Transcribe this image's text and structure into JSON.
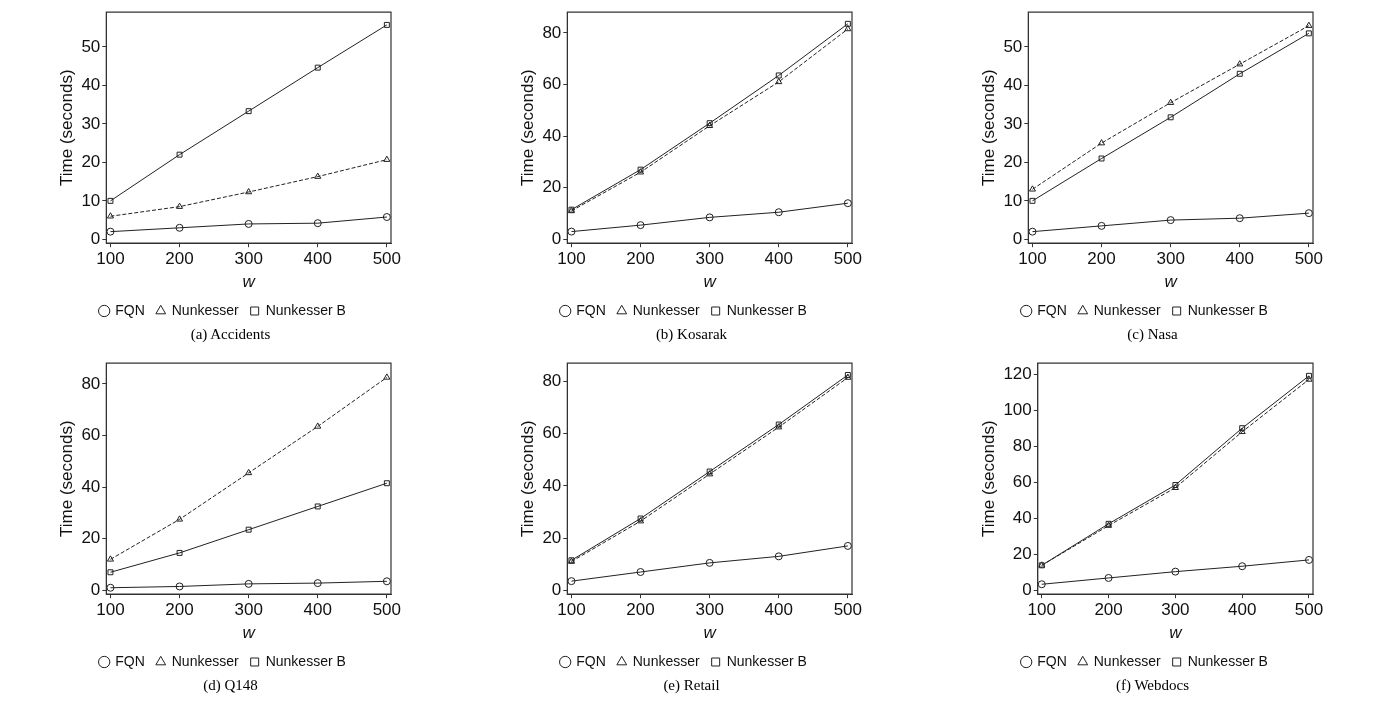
{
  "chart_data": [
    {
      "type": "line",
      "title": "(a) Accidents",
      "xlabel": "w",
      "ylabel": "Time (seconds)",
      "x": [
        100,
        200,
        300,
        400,
        500
      ],
      "xlim": [
        94,
        506
      ],
      "xticks": [
        100,
        200,
        300,
        400,
        500
      ],
      "ylim": [
        -1,
        59
      ],
      "yticks": [
        0,
        10,
        20,
        30,
        40,
        50
      ],
      "grid": false,
      "legend": "bottom",
      "series": [
        {
          "name": "FQN",
          "color": "#222222",
          "marker": "circle",
          "line_style": "solid",
          "values": [
            2,
            3,
            4,
            4.2,
            5.8
          ]
        },
        {
          "name": "Nunkesser",
          "color": "#222222",
          "marker": "triangle",
          "line_style": "dashed",
          "values": [
            6,
            8.5,
            12.3,
            16.3,
            20.7
          ]
        },
        {
          "name": "Nunkesser B",
          "color": "#222222",
          "marker": "square",
          "line_style": "solid",
          "values": [
            10,
            22,
            33.3,
            44.6,
            55.7
          ]
        }
      ]
    },
    {
      "type": "line",
      "title": "(b) Kosarak",
      "xlabel": "w",
      "ylabel": "Time (seconds)",
      "x": [
        100,
        200,
        300,
        400,
        500
      ],
      "xlim": [
        94,
        506
      ],
      "xticks": [
        100,
        200,
        300,
        400,
        500
      ],
      "ylim": [
        -1.5,
        88
      ],
      "yticks": [
        0,
        20,
        40,
        60,
        80
      ],
      "grid": false,
      "legend": "bottom",
      "series": [
        {
          "name": "FQN",
          "color": "#222222",
          "marker": "circle",
          "line_style": "solid",
          "values": [
            3,
            5.5,
            8.5,
            10.5,
            14
          ]
        },
        {
          "name": "Nunkesser",
          "color": "#222222",
          "marker": "triangle",
          "line_style": "dashed",
          "values": [
            11,
            26,
            44,
            61,
            81.5
          ]
        },
        {
          "name": "Nunkesser B",
          "color": "#222222",
          "marker": "square",
          "line_style": "solid",
          "values": [
            11.5,
            27,
            45,
            63.5,
            83.5
          ]
        }
      ]
    },
    {
      "type": "line",
      "title": "(c) Nasa",
      "xlabel": "w",
      "ylabel": "Time (seconds)",
      "x": [
        100,
        200,
        300,
        400,
        500
      ],
      "xlim": [
        94,
        506
      ],
      "xticks": [
        100,
        200,
        300,
        400,
        500
      ],
      "ylim": [
        -1,
        59
      ],
      "yticks": [
        0,
        10,
        20,
        30,
        40,
        50
      ],
      "grid": false,
      "legend": "bottom",
      "series": [
        {
          "name": "FQN",
          "color": "#222222",
          "marker": "circle",
          "line_style": "solid",
          "values": [
            2,
            3.5,
            5,
            5.5,
            6.8
          ]
        },
        {
          "name": "Nunkesser",
          "color": "#222222",
          "marker": "triangle",
          "line_style": "dashed",
          "values": [
            13,
            25,
            35.5,
            45.5,
            55.5
          ]
        },
        {
          "name": "Nunkesser B",
          "color": "#222222",
          "marker": "square",
          "line_style": "solid",
          "values": [
            10,
            21,
            31.7,
            43,
            53.5
          ]
        }
      ]
    },
    {
      "type": "line",
      "title": "(d) Q148",
      "xlabel": "w",
      "ylabel": "Time (seconds)",
      "x": [
        100,
        200,
        300,
        400,
        500
      ],
      "xlim": [
        94,
        506
      ],
      "xticks": [
        100,
        200,
        300,
        400,
        500
      ],
      "ylim": [
        -1.5,
        88
      ],
      "yticks": [
        0,
        20,
        40,
        60,
        80
      ],
      "grid": false,
      "legend": "bottom",
      "series": [
        {
          "name": "FQN",
          "color": "#222222",
          "marker": "circle",
          "line_style": "solid",
          "values": [
            1,
            1.5,
            2.5,
            2.8,
            3.5
          ]
        },
        {
          "name": "Nunkesser",
          "color": "#222222",
          "marker": "triangle",
          "line_style": "dashed",
          "values": [
            12,
            27.5,
            45.5,
            63.5,
            82.5
          ]
        },
        {
          "name": "Nunkesser B",
          "color": "#222222",
          "marker": "square",
          "line_style": "solid",
          "values": [
            7,
            14.5,
            23.5,
            32.5,
            41.5
          ]
        }
      ]
    },
    {
      "type": "line",
      "title": "(e) Retail",
      "xlabel": "w",
      "ylabel": "Time (seconds)",
      "x": [
        100,
        200,
        300,
        400,
        500
      ],
      "xlim": [
        94,
        506
      ],
      "xticks": [
        100,
        200,
        300,
        400,
        500
      ],
      "ylim": [
        -1.5,
        87
      ],
      "yticks": [
        0,
        20,
        40,
        60,
        80
      ],
      "grid": false,
      "legend": "bottom",
      "series": [
        {
          "name": "FQN",
          "color": "#222222",
          "marker": "circle",
          "line_style": "solid",
          "values": [
            3.5,
            7,
            10.5,
            13,
            17
          ]
        },
        {
          "name": "Nunkesser",
          "color": "#222222",
          "marker": "triangle",
          "line_style": "dashed",
          "values": [
            11,
            26.5,
            44.5,
            62.5,
            81.5
          ]
        },
        {
          "name": "Nunkesser B",
          "color": "#222222",
          "marker": "square",
          "line_style": "solid",
          "values": [
            11.5,
            27.5,
            45.5,
            63.5,
            82.5
          ]
        }
      ]
    },
    {
      "type": "line",
      "title": "(f) Webdocs",
      "xlabel": "w",
      "ylabel": "Time (seconds)",
      "x": [
        100,
        200,
        300,
        400,
        500
      ],
      "xlim": [
        94,
        506
      ],
      "xticks": [
        100,
        200,
        300,
        400,
        500
      ],
      "ylim": [
        -2,
        126
      ],
      "yticks": [
        0,
        20,
        40,
        60,
        80,
        100,
        120
      ],
      "grid": false,
      "legend": "bottom",
      "series": [
        {
          "name": "FQN",
          "color": "#222222",
          "marker": "circle",
          "line_style": "solid",
          "values": [
            3.5,
            7,
            10.5,
            13.5,
            17
          ]
        },
        {
          "name": "Nunkesser",
          "color": "#222222",
          "marker": "triangle",
          "line_style": "dashed",
          "values": [
            14,
            36,
            57,
            88,
            117
          ]
        },
        {
          "name": "Nunkesser B",
          "color": "#222222",
          "marker": "square",
          "line_style": "solid",
          "values": [
            14,
            37,
            58.5,
            90,
            119
          ]
        }
      ]
    }
  ]
}
